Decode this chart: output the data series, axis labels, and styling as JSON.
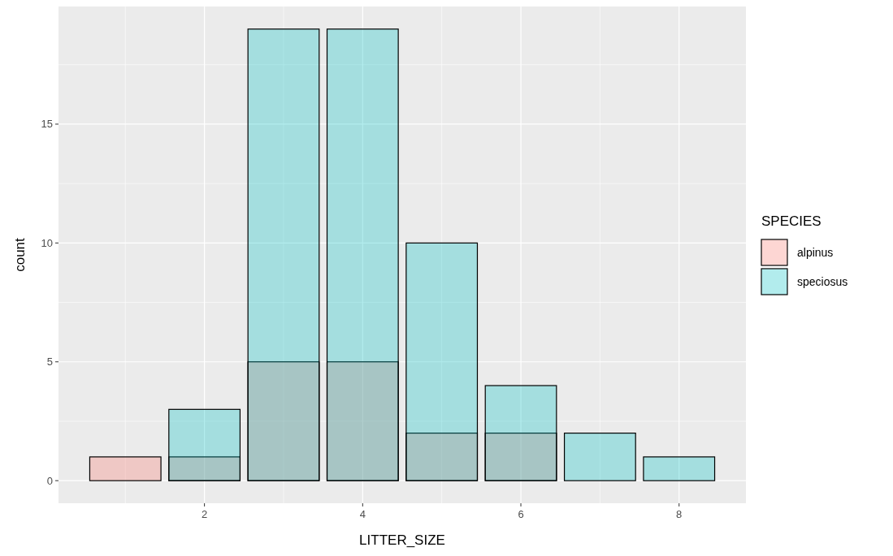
{
  "chart_data": {
    "type": "bar",
    "xlabel": "LITTER_SIZE",
    "ylabel": "count",
    "legend_title": "SPECIES",
    "x": [
      1,
      2,
      3,
      4,
      5,
      6,
      7,
      8
    ],
    "series": [
      {
        "name": "alpinus",
        "color": "#f8766d",
        "values": [
          1,
          1,
          5,
          5,
          2,
          2,
          null,
          null
        ]
      },
      {
        "name": "speciosus",
        "color": "#00bfc4",
        "values": [
          null,
          3,
          19,
          19,
          10,
          4,
          2,
          1
        ]
      }
    ],
    "xlim": [
      0.155,
      8.845
    ],
    "xticks": [
      2,
      4,
      6,
      8
    ],
    "ylim": [
      -0.95,
      19.95
    ],
    "yticks": [
      0,
      5,
      10,
      15
    ],
    "grid": true,
    "legend": "right"
  }
}
